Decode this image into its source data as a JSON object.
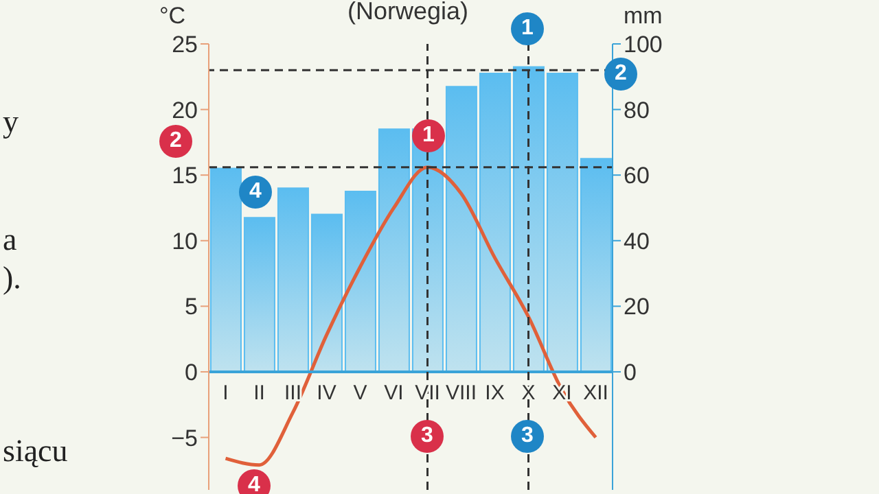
{
  "chart_data": {
    "type": "bar",
    "title": "(Norwegia)",
    "ylabel": "°C",
    "y2label": "mm",
    "categories": [
      "I",
      "II",
      "III",
      "IV",
      "V",
      "VI",
      "VII",
      "VIII",
      "IX",
      "X",
      "XI",
      "XII"
    ],
    "series": [
      {
        "axis": "y2",
        "color": "#5bbdf0",
        "values": [
          62,
          47,
          56,
          48,
          55,
          74,
          74,
          87,
          91,
          93,
          91,
          65
        ]
      },
      {
        "type": "line",
        "axis": "y",
        "color": "#e0603a",
        "values": [
          -6.6,
          -7.1,
          -3.1,
          2.8,
          8.0,
          12.5,
          15.6,
          13.6,
          8.7,
          4.2,
          -1.4,
          -5.0
        ]
      }
    ],
    "ylim": [
      -9,
      25
    ],
    "yticks": [
      -5,
      0,
      5,
      10,
      15,
      20,
      25
    ],
    "y2lim": [
      -36,
      100
    ],
    "y2ticks": [
      0,
      20,
      40,
      60,
      80,
      100
    ],
    "marker": "none",
    "line_style": "solid",
    "ref_lines": [
      {
        "axis": "y",
        "value": 15.6,
        "color": "#333333",
        "line_style": "dashed"
      },
      {
        "axis": "y2",
        "value": 92,
        "color": "#333333",
        "line_style": "dashed"
      },
      {
        "axis": "x",
        "value": "VII",
        "color": "#333333",
        "line_style": "dashed"
      },
      {
        "axis": "x",
        "value": "X",
        "color": "#333333",
        "line_style": "dashed"
      }
    ],
    "annotations": [
      "y",
      "a",
      ").",
      "siącu",
      "1",
      "1",
      "2",
      "2",
      "3",
      "3",
      "4",
      "4"
    ]
  }
}
